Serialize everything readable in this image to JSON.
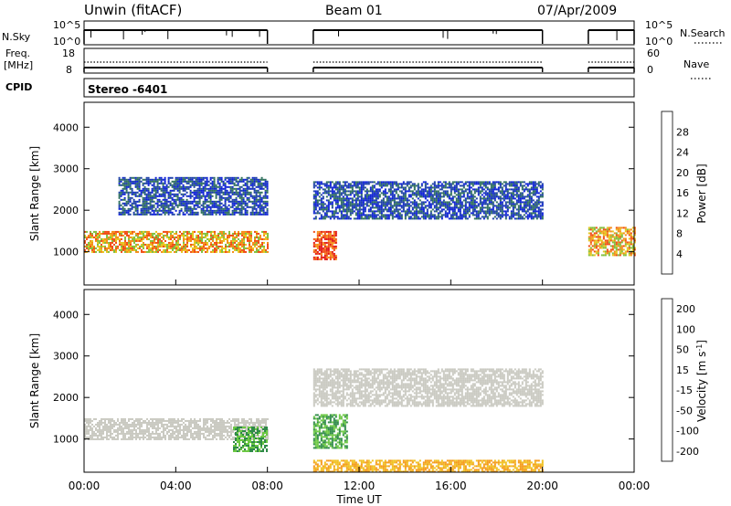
{
  "header": {
    "radar": "Unwin (fitACF)",
    "beam": "Beam 01",
    "date": "07/Apr/2009"
  },
  "panels": {
    "nsky": {
      "left_label": "N.Sky",
      "left_ticks": [
        "10^5",
        "10^0"
      ],
      "right_ticks": [
        "10^5",
        "10^0"
      ],
      "right_label": "N.Search",
      "right_legend_style": "dotted"
    },
    "freq": {
      "left_label_line1": "Freq.",
      "left_label_line2": "[MHz]",
      "left_ticks": [
        "18",
        "8"
      ],
      "right_ticks": [
        "60",
        "0"
      ],
      "right_label": "Nave",
      "right_legend_style": "dotted"
    },
    "cpid": {
      "label": "CPID",
      "value": "Stereo -6401"
    }
  },
  "colors": {
    "power_scale": [
      "#0b1fd6",
      "#1b3fa6",
      "#2d6f5c",
      "#4a9a55",
      "#7fbf3a",
      "#e6c61a",
      "#f58a14",
      "#f04a12",
      "#e01010"
    ],
    "velocity_scale": [
      "#1c2aa8",
      "#2a55a0",
      "#2e8a47",
      "#6cc843",
      "#c9c9c0",
      "#f0c020",
      "#f59a18",
      "#f05518",
      "#e01010"
    ]
  },
  "chart_data": [
    {
      "type": "heatmap",
      "title": "",
      "ylabel": "Slant Range [km]",
      "xlabel": "",
      "xlim": [
        "00:00",
        "24:00"
      ],
      "ylim": [
        200,
        4600
      ],
      "y_ticks": [
        1000,
        2000,
        3000,
        4000
      ],
      "x_ticks": [
        "00:00",
        "04:00",
        "08:00",
        "12:00",
        "16:00",
        "20:00",
        "00:00"
      ],
      "colorbar": {
        "label": "Power [dB]",
        "ticks": [
          4,
          8,
          12,
          16,
          20,
          24,
          28
        ]
      },
      "data_gaps_hours": [
        [
          8.0,
          10.0
        ],
        [
          20.0,
          22.0
        ]
      ],
      "echo_bands": [
        {
          "start_h": 0.0,
          "end_h": 8.0,
          "range_km": [
            1000,
            1500
          ],
          "level": "high"
        },
        {
          "start_h": 1.5,
          "end_h": 8.0,
          "range_km": [
            1900,
            2800
          ],
          "level": "low"
        },
        {
          "start_h": 10.0,
          "end_h": 11.0,
          "range_km": [
            800,
            1500
          ],
          "level": "very high"
        },
        {
          "start_h": 10.0,
          "end_h": 20.0,
          "range_km": [
            1800,
            2700
          ],
          "level": "low"
        },
        {
          "start_h": 22.0,
          "end_h": 24.0,
          "range_km": [
            900,
            1600
          ],
          "level": "high"
        }
      ]
    },
    {
      "type": "heatmap",
      "title": "",
      "ylabel": "Slant Range [km]",
      "xlabel": "Time UT",
      "xlim": [
        "00:00",
        "24:00"
      ],
      "ylim": [
        200,
        4600
      ],
      "y_ticks": [
        1000,
        2000,
        3000,
        4000
      ],
      "x_ticks": [
        "00:00",
        "04:00",
        "08:00",
        "12:00",
        "16:00",
        "20:00",
        "00:00"
      ],
      "colorbar": {
        "label": "Velocity [m s^-1]",
        "ticks": [
          200,
          100,
          50,
          15,
          -15,
          -50,
          -100,
          -200
        ]
      },
      "data_gaps_hours": [
        [
          8.0,
          10.0
        ],
        [
          20.0,
          22.0
        ]
      ],
      "echo_bands": [
        {
          "start_h": 0.0,
          "end_h": 8.0,
          "range_km": [
            1000,
            1500
          ],
          "level": "near zero"
        },
        {
          "start_h": 6.5,
          "end_h": 8.0,
          "range_km": [
            700,
            1300
          ],
          "level": "positive"
        },
        {
          "start_h": 10.0,
          "end_h": 11.5,
          "range_km": [
            800,
            1600
          ],
          "level": "positive"
        },
        {
          "start_h": 10.0,
          "end_h": 20.0,
          "range_km": [
            1800,
            2700
          ],
          "level": "near zero"
        },
        {
          "start_h": 10.0,
          "end_h": 20.0,
          "range_km": [
            200,
            500
          ],
          "level": "negative"
        }
      ]
    }
  ]
}
